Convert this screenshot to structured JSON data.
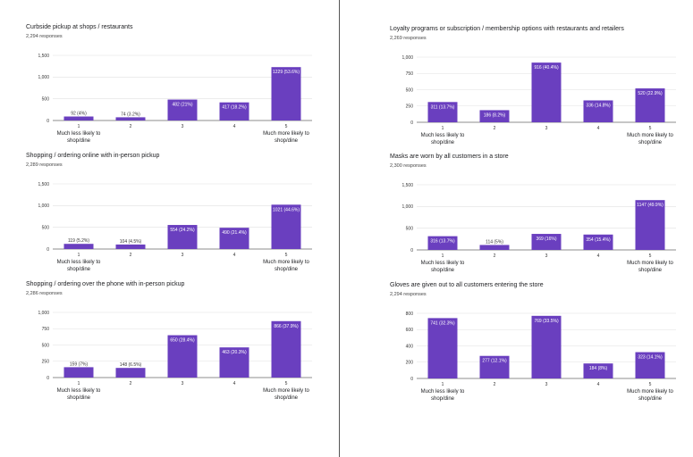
{
  "colors": {
    "bar": "#6A3FBF",
    "grid": "#e0e0e0",
    "axis": "#666666"
  },
  "chart_data": [
    {
      "type": "bar",
      "title": "Curbside pickup at shops / restaurants",
      "subtitle": "2,294 responses",
      "categories": [
        "1",
        "2",
        "3",
        "4",
        "5"
      ],
      "category_sublabels": [
        "Much less likely to shop/dine",
        "",
        "",
        "",
        "Much more likely to shop/dine"
      ],
      "values": [
        92,
        74,
        482,
        417,
        1229
      ],
      "data_labels": [
        "92 (4%)",
        "74 (3.2%)",
        "482 (21%)",
        "417 (18.2%)",
        "1229 (53.6%)"
      ],
      "yticks": [
        "0",
        "500",
        "1,000",
        "1,500"
      ],
      "ylim": [
        0,
        1500
      ]
    },
    {
      "type": "bar",
      "title": "Shopping / ordering online with in-person pickup",
      "subtitle": "2,289 responses",
      "categories": [
        "1",
        "2",
        "3",
        "4",
        "5"
      ],
      "category_sublabels": [
        "Much less likely to shop/dine",
        "",
        "",
        "",
        "Much more likely to shop/dine"
      ],
      "values": [
        119,
        104,
        554,
        490,
        1021
      ],
      "data_labels": [
        "119 (5.2%)",
        "104 (4.5%)",
        "554 (24.2%)",
        "490 (21.4%)",
        "1021 (44.6%)"
      ],
      "yticks": [
        "0",
        "500",
        "1,000",
        "1,500"
      ],
      "ylim": [
        0,
        1500
      ]
    },
    {
      "type": "bar",
      "title": "Shopping / ordering over the phone with in-person pickup",
      "subtitle": "2,286 responses",
      "categories": [
        "1",
        "2",
        "3",
        "4",
        "5"
      ],
      "category_sublabels": [
        "Much less likely to shop/dine",
        "",
        "",
        "",
        "Much more likely to shop/dine"
      ],
      "values": [
        159,
        148,
        650,
        463,
        866
      ],
      "data_labels": [
        "159 (7%)",
        "148 (6.5%)",
        "650 (28.4%)",
        "463 (20.3%)",
        "866 (37.9%)"
      ],
      "yticks": [
        "0",
        "250",
        "500",
        "750",
        "1,000"
      ],
      "ylim": [
        0,
        1000
      ]
    },
    {
      "type": "bar",
      "title": "Loyalty programs or subscription / membership options with restaurants and retailers",
      "subtitle": "2,269 responses",
      "categories": [
        "1",
        "2",
        "3",
        "4",
        "5"
      ],
      "category_sublabels": [
        "Much less likely to shop/dine",
        "",
        "",
        "",
        "Much more likely to shop/dine"
      ],
      "values": [
        311,
        186,
        916,
        336,
        520
      ],
      "data_labels": [
        "311 (13.7%)",
        "186 (8.2%)",
        "916 (40.4%)",
        "336 (14.8%)",
        "520 (22.9%)"
      ],
      "yticks": [
        "0",
        "250",
        "500",
        "750",
        "1,000"
      ],
      "ylim": [
        0,
        1000
      ]
    },
    {
      "type": "bar",
      "title": "Masks are worn by all customers in a store",
      "subtitle": "2,300 responses",
      "categories": [
        "1",
        "2",
        "3",
        "4",
        "5"
      ],
      "category_sublabels": [
        "Much less likely to shop/dine",
        "",
        "",
        "",
        "Much more likely to shop/dine"
      ],
      "values": [
        316,
        114,
        369,
        354,
        1147
      ],
      "data_labels": [
        "316 (13.7%)",
        "114 (5%)",
        "369 (16%)",
        "354 (15.4%)",
        "1147 (49.9%)"
      ],
      "yticks": [
        "0",
        "500",
        "1,000",
        "1,500"
      ],
      "ylim": [
        0,
        1500
      ]
    },
    {
      "type": "bar",
      "title": "Gloves are given out to all customers entering the store",
      "subtitle": "2,294 responses",
      "categories": [
        "1",
        "2",
        "3",
        "4",
        "5"
      ],
      "category_sublabels": [
        "Much less likely to shop/dine",
        "",
        "",
        "",
        "Much more likely to shop/dine"
      ],
      "values": [
        741,
        277,
        769,
        184,
        323
      ],
      "data_labels": [
        "741 (32.3%)",
        "277 (12.1%)",
        "769 (33.5%)",
        "184 (8%)",
        "323 (14.1%)"
      ],
      "yticks": [
        "0",
        "200",
        "400",
        "600",
        "800"
      ],
      "ylim": [
        0,
        800
      ]
    }
  ]
}
